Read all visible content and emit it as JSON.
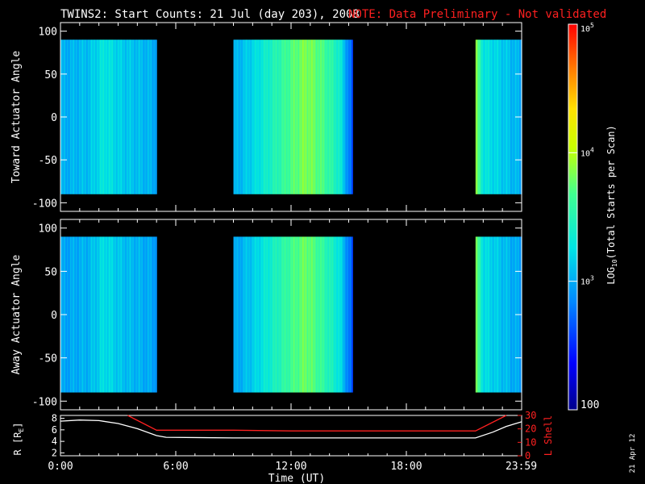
{
  "header": {
    "title": "TWINS2: Start Counts: 21 Jul (day 203), 2008",
    "note": "NOTE: Data Preliminary - Not validated"
  },
  "side_label": "21 Apr 12",
  "colors": {
    "background": "#000000",
    "frame": "#ffffff",
    "note": "#ff2020",
    "lshell": "#ff2020",
    "radius": "#ffffff"
  },
  "chart_data": [
    {
      "type": "heatmap",
      "ylabel": "Toward Actuator Angle",
      "xlim": [
        0,
        24
      ],
      "ylim": [
        -110,
        110
      ],
      "yticks": [
        "100",
        "50",
        "0",
        "-50",
        "-100"
      ],
      "ytick_values": [
        100,
        50,
        0,
        -50,
        -100
      ],
      "y_data_range": [
        -90,
        90
      ],
      "data_blocks": [
        {
          "start": 0.0,
          "end": 5.0
        },
        {
          "start": 9.0,
          "end": 15.2
        },
        {
          "start": 21.6,
          "end": 24.0
        }
      ],
      "profile": [
        {
          "t": 0.0,
          "v": 3.0
        },
        {
          "t": 1.5,
          "v": 3.1
        },
        {
          "t": 2.3,
          "v": 3.3
        },
        {
          "t": 3.2,
          "v": 3.15
        },
        {
          "t": 4.5,
          "v": 3.05
        },
        {
          "t": 5.0,
          "v": 3.0
        },
        {
          "t": 9.0,
          "v": 3.0
        },
        {
          "t": 10.0,
          "v": 3.2
        },
        {
          "t": 11.0,
          "v": 3.45
        },
        {
          "t": 12.0,
          "v": 3.7
        },
        {
          "t": 12.8,
          "v": 3.85
        },
        {
          "t": 13.6,
          "v": 3.7
        },
        {
          "t": 14.5,
          "v": 3.4
        },
        {
          "t": 15.2,
          "v": 2.6
        },
        {
          "t": 21.6,
          "v": 3.9
        },
        {
          "t": 22.0,
          "v": 3.3
        },
        {
          "t": 24.0,
          "v": 3.0
        }
      ]
    },
    {
      "type": "heatmap",
      "ylabel": "Away Actuator Angle",
      "xlim": [
        0,
        24
      ],
      "ylim": [
        -110,
        110
      ],
      "yticks": [
        "100",
        "50",
        "0",
        "-50",
        "-100"
      ],
      "ytick_values": [
        100,
        50,
        0,
        -50,
        -100
      ],
      "y_data_range": [
        -90,
        90
      ],
      "data_blocks": [
        {
          "start": 0.0,
          "end": 5.0
        },
        {
          "start": 9.0,
          "end": 15.2
        },
        {
          "start": 21.6,
          "end": 24.0
        }
      ],
      "profile": [
        {
          "t": 0.0,
          "v": 2.95
        },
        {
          "t": 1.5,
          "v": 3.05
        },
        {
          "t": 2.3,
          "v": 3.25
        },
        {
          "t": 3.2,
          "v": 3.1
        },
        {
          "t": 4.5,
          "v": 3.0
        },
        {
          "t": 5.0,
          "v": 2.95
        },
        {
          "t": 9.0,
          "v": 2.95
        },
        {
          "t": 10.0,
          "v": 3.15
        },
        {
          "t": 11.0,
          "v": 3.4
        },
        {
          "t": 12.0,
          "v": 3.65
        },
        {
          "t": 12.8,
          "v": 3.8
        },
        {
          "t": 13.6,
          "v": 3.6
        },
        {
          "t": 14.5,
          "v": 3.3
        },
        {
          "t": 15.2,
          "v": 2.6
        },
        {
          "t": 21.6,
          "v": 3.85
        },
        {
          "t": 22.0,
          "v": 3.25
        },
        {
          "t": 24.0,
          "v": 2.95
        }
      ]
    },
    {
      "type": "line",
      "ylabel": "R [RE]",
      "ylabel_main": "R [R",
      "ylabel_sub": "E",
      "ylabel_end": "]",
      "y2label": "L Shell",
      "xlabel": "Time (UT)",
      "xticks": [
        "0:00",
        "6:00",
        "12:00",
        "18:00",
        "23:59"
      ],
      "xtick_values": [
        0,
        6,
        12,
        18,
        23.98
      ],
      "xlim": [
        0,
        24
      ],
      "ylim": [
        1.5,
        8.5
      ],
      "yticks": [
        "8",
        "6",
        "4",
        "2"
      ],
      "ytick_values": [
        8,
        6,
        4,
        2
      ],
      "y2lim": [
        0,
        30
      ],
      "y2ticks": [
        "30",
        "20",
        "10",
        "0"
      ],
      "y2tick_values": [
        30,
        20,
        10,
        0
      ],
      "series": [
        {
          "name": "",
          "axis": "left",
          "x": [
            0,
            1,
            2,
            3,
            4,
            5,
            5.5,
            9,
            12,
            15,
            18,
            21.6,
            22.5,
            23.2,
            24
          ],
          "y": [
            7.5,
            7.7,
            7.6,
            7.1,
            6.2,
            5.0,
            4.7,
            4.6,
            4.6,
            4.6,
            4.6,
            4.6,
            5.6,
            6.6,
            7.4
          ]
        },
        {
          "name": "",
          "axis": "right",
          "x": [
            3.5,
            5.0,
            9,
            12,
            15,
            18,
            21.6,
            23.2
          ],
          "y": [
            30,
            19,
            19,
            18.5,
            18.5,
            18.5,
            18.5,
            30
          ]
        }
      ]
    }
  ],
  "colorbar": {
    "label": "LOG10(Total Starts per Scan)",
    "label_main": "LOG",
    "label_sub": "10",
    "label_end": "(Total Starts per Scan)",
    "log_range": [
      2,
      5
    ],
    "ticks": [
      {
        "value": 5,
        "base": "10",
        "exp": "5"
      },
      {
        "value": 4,
        "base": "10",
        "exp": "4"
      },
      {
        "value": 3,
        "base": "10",
        "exp": "3"
      },
      {
        "value": 2,
        "base": "100",
        "exp": ""
      }
    ]
  }
}
